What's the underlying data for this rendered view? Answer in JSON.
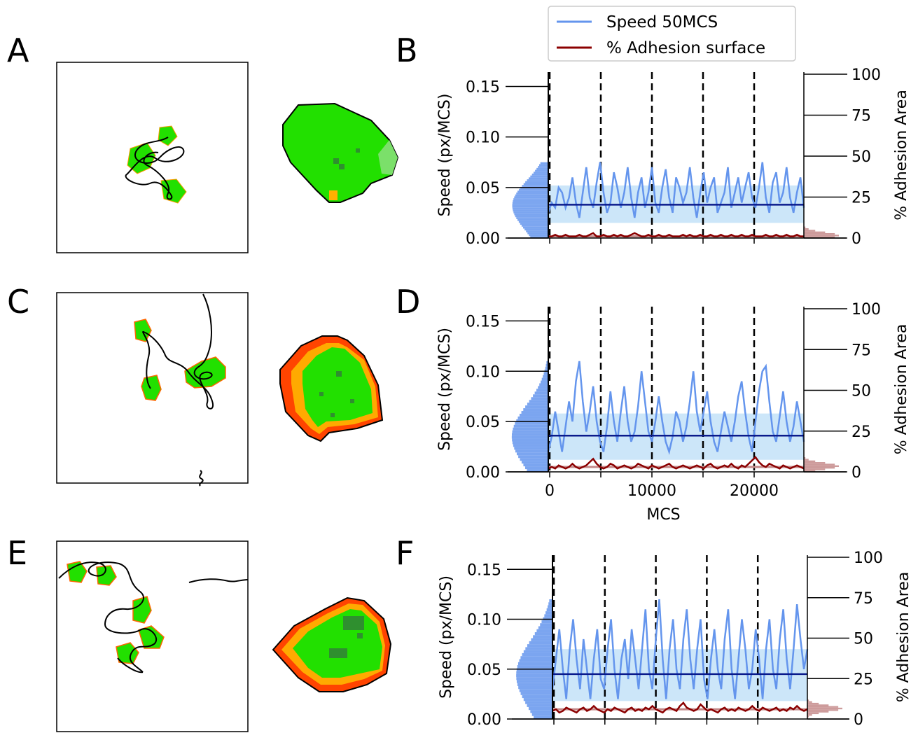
{
  "panel_letters": [
    "A",
    "B",
    "C",
    "D",
    "E",
    "F"
  ],
  "legend": {
    "speed_label": "Speed 50MCS",
    "adhesion_label": "% Adhesion surface"
  },
  "colors": {
    "speed": "#6495ed",
    "speed_band": "#bfe0f7",
    "mean_line": "#0a1a8c",
    "adhesion": "#8b0000",
    "adhesion_hist": "#c48a8a",
    "cell_green": "#22e000",
    "cell_dark": "#2f8f2f",
    "cell_edge_orange": "#ff8c00",
    "cell_edge_red": "#e02000"
  },
  "chart_data": [
    {
      "panel": "B",
      "type": "line",
      "ylabel": "Speed  (px/MCS)",
      "ylabel_right": "% Adhesion Area",
      "ylim": [
        0,
        0.16
      ],
      "ylim_right": [
        0,
        100
      ],
      "xlim": [
        0,
        25000
      ],
      "yticks": [
        "0.00",
        "0.05",
        "0.10",
        "0.15"
      ],
      "yticks_right": [
        "0",
        "25",
        "50",
        "75",
        "100"
      ],
      "vlines": [
        0,
        5000,
        10000,
        15000,
        20000
      ],
      "speed_mean": 0.033,
      "speed_band": [
        0.015,
        0.052
      ],
      "speed_max": 0.075,
      "adhesion_mean": 1,
      "series": [
        {
          "name": "Speed 50MCS",
          "values": [
            0.025,
            0.035,
            0.03,
            0.05,
            0.045,
            0.03,
            0.04,
            0.06,
            0.035,
            0.02,
            0.045,
            0.07,
            0.04,
            0.03,
            0.055,
            0.075,
            0.045,
            0.025,
            0.035,
            0.065,
            0.05,
            0.03,
            0.045,
            0.07,
            0.04,
            0.02,
            0.045,
            0.06,
            0.03,
            0.045,
            0.07,
            0.035,
            0.025,
            0.05,
            0.068,
            0.04,
            0.025,
            0.06,
            0.05,
            0.035,
            0.045,
            0.07,
            0.04,
            0.02,
            0.045,
            0.065,
            0.035,
            0.05,
            0.06,
            0.025,
            0.035,
            0.045,
            0.07,
            0.03,
            0.045,
            0.06,
            0.035,
            0.05,
            0.065,
            0.04,
            0.03,
            0.05,
            0.075,
            0.04,
            0.025,
            0.055,
            0.065,
            0.035,
            0.045,
            0.07,
            0.04,
            0.025,
            0.045,
            0.06,
            0.03
          ]
        },
        {
          "name": "% Adhesion surface",
          "values": [
            1,
            1,
            2,
            1,
            1,
            2,
            1,
            1,
            1,
            2,
            1,
            1,
            2,
            3,
            1,
            1,
            2,
            1,
            1,
            2,
            1,
            2,
            1,
            1,
            2,
            3,
            2,
            1,
            1,
            2,
            1,
            1,
            2,
            1,
            1,
            2,
            1,
            1,
            1,
            2,
            1,
            2,
            1,
            1,
            2,
            1,
            1,
            2,
            1,
            1,
            2,
            1,
            1,
            2,
            1,
            1,
            2,
            1,
            1,
            2,
            1,
            1,
            1,
            2,
            1,
            1,
            2,
            1,
            1,
            2,
            1,
            1,
            2,
            1,
            1
          ]
        }
      ]
    },
    {
      "panel": "D",
      "type": "line",
      "ylabel": "Speed  (px/MCS)",
      "ylabel_right": "% Adhesion Area",
      "xlabel": "MCS",
      "ylim": [
        0,
        0.16
      ],
      "ylim_right": [
        0,
        100
      ],
      "xlim": [
        0,
        25000
      ],
      "yticks": [
        "0.00",
        "0.05",
        "0.10",
        "0.15"
      ],
      "yticks_right": [
        "0",
        "25",
        "50",
        "75",
        "100"
      ],
      "xticks": [
        "0",
        "10000",
        "20000"
      ],
      "vlines": [
        0,
        5000,
        10000,
        15000,
        20000
      ],
      "speed_mean": 0.036,
      "speed_band": [
        0.012,
        0.058
      ],
      "speed_max": 0.11,
      "adhesion_mean": 3,
      "series": [
        {
          "name": "Speed 50MCS",
          "values": [
            0.02,
            0.035,
            0.06,
            0.04,
            0.02,
            0.045,
            0.07,
            0.05,
            0.09,
            0.11,
            0.07,
            0.04,
            0.06,
            0.085,
            0.05,
            0.03,
            0.02,
            0.045,
            0.08,
            0.05,
            0.03,
            0.06,
            0.085,
            0.05,
            0.03,
            0.04,
            0.065,
            0.1,
            0.07,
            0.04,
            0.03,
            0.05,
            0.075,
            0.05,
            0.03,
            0.02,
            0.035,
            0.06,
            0.05,
            0.03,
            0.045,
            0.07,
            0.1,
            0.06,
            0.04,
            0.06,
            0.08,
            0.05,
            0.03,
            0.02,
            0.04,
            0.06,
            0.045,
            0.03,
            0.05,
            0.075,
            0.09,
            0.06,
            0.035,
            0.02,
            0.05,
            0.08,
            0.1,
            0.105,
            0.07,
            0.04,
            0.03,
            0.055,
            0.08,
            0.05,
            0.03,
            0.045,
            0.07,
            0.05,
            0.03
          ]
        },
        {
          "name": "% Adhesion surface",
          "values": [
            2,
            3,
            2,
            4,
            3,
            2,
            3,
            5,
            3,
            2,
            3,
            4,
            6,
            8,
            5,
            3,
            2,
            3,
            5,
            4,
            2,
            3,
            4,
            3,
            2,
            3,
            5,
            4,
            3,
            2,
            4,
            3,
            2,
            3,
            4,
            5,
            3,
            2,
            3,
            4,
            3,
            2,
            3,
            4,
            3,
            2,
            4,
            5,
            3,
            2,
            3,
            4,
            3,
            5,
            3,
            2,
            4,
            3,
            5,
            7,
            9,
            6,
            4,
            3,
            5,
            4,
            3,
            2,
            4,
            3,
            2,
            3,
            4,
            3,
            2
          ]
        }
      ]
    },
    {
      "panel": "F",
      "type": "line",
      "ylabel": "Speed  (px/MCS)",
      "ylabel_right": "% Adhesion Area",
      "ylim": [
        0,
        0.16
      ],
      "ylim_right": [
        0,
        100
      ],
      "xlim": [
        0,
        25000
      ],
      "yticks": [
        "0.00",
        "0.05",
        "0.10",
        "0.15"
      ],
      "yticks_right": [
        "0",
        "25",
        "50",
        "75",
        "100"
      ],
      "vlines": [
        0,
        5000,
        10000,
        15000,
        20000
      ],
      "speed_mean": 0.045,
      "speed_band": [
        0.018,
        0.07
      ],
      "speed_max": 0.12,
      "adhesion_mean": 6,
      "series": [
        {
          "name": "Speed 50MCS",
          "values": [
            0.03,
            0.06,
            0.09,
            0.05,
            0.02,
            0.07,
            0.1,
            0.06,
            0.03,
            0.08,
            0.05,
            0.02,
            0.06,
            0.09,
            0.04,
            0.03,
            0.07,
            0.1,
            0.05,
            0.02,
            0.06,
            0.08,
            0.04,
            0.09,
            0.06,
            0.03,
            0.07,
            0.11,
            0.05,
            0.03,
            0.08,
            0.12,
            0.06,
            0.02,
            0.07,
            0.1,
            0.05,
            0.03,
            0.08,
            0.11,
            0.06,
            0.03,
            0.07,
            0.1,
            0.04,
            0.02,
            0.06,
            0.09,
            0.05,
            0.03,
            0.08,
            0.11,
            0.05,
            0.02,
            0.06,
            0.1,
            0.07,
            0.03,
            0.05,
            0.09,
            0.06,
            0.02,
            0.07,
            0.1,
            0.05,
            0.03,
            0.08,
            0.11,
            0.06,
            0.03,
            0.07,
            0.115,
            0.08,
            0.05,
            0.07
          ]
        },
        {
          "name": "% Adhesion surface",
          "values": [
            5,
            6,
            4,
            5,
            7,
            6,
            5,
            4,
            6,
            7,
            5,
            6,
            8,
            6,
            5,
            4,
            6,
            5,
            7,
            6,
            5,
            4,
            6,
            7,
            5,
            6,
            5,
            7,
            6,
            8,
            6,
            5,
            4,
            6,
            7,
            6,
            5,
            8,
            10,
            7,
            6,
            5,
            6,
            9,
            7,
            5,
            6,
            5,
            4,
            6,
            7,
            5,
            6,
            5,
            7,
            6,
            5,
            6,
            8,
            6,
            5,
            7,
            6,
            5,
            6,
            7,
            5,
            6,
            5,
            7,
            6,
            8,
            6,
            5,
            6
          ]
        }
      ]
    }
  ]
}
